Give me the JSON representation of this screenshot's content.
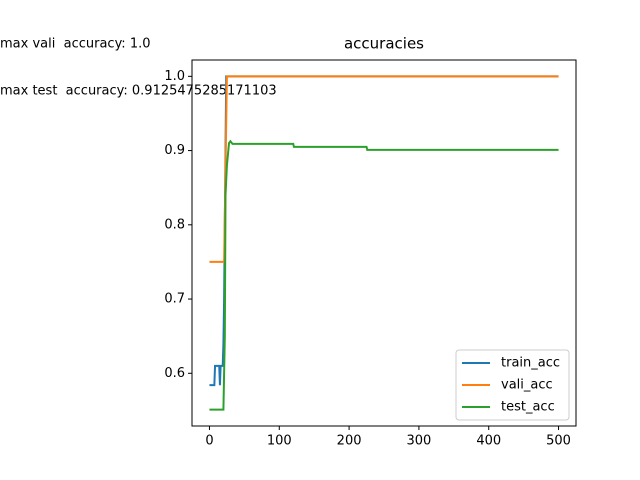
{
  "chart_data": {
    "type": "line",
    "title": "accuracies",
    "annotations": [
      "max vali  accuracy: 1.0",
      "max test  accuracy: 0.9125475285171103"
    ],
    "xlim": [
      -25,
      525
    ],
    "ylim": [
      0.529,
      1.022
    ],
    "xticks": [
      0,
      100,
      200,
      300,
      400,
      500
    ],
    "yticks": [
      0.6,
      0.7,
      0.8,
      0.9,
      {
        "value": 1,
        "label": "1.0"
      }
    ],
    "legend": "lower right",
    "series": [
      {
        "name": "train_acc",
        "color": "#1f77b4",
        "x": [
          0,
          7,
          8,
          14,
          15,
          16,
          19,
          20,
          21,
          22,
          23,
          24,
          500
        ],
        "values": [
          0.584,
          0.584,
          0.61,
          0.61,
          0.584,
          0.61,
          0.61,
          0.64,
          0.7,
          0.8,
          0.9,
          1,
          1
        ]
      },
      {
        "name": "vali_acc",
        "color": "#ff7f0e",
        "x": [
          0,
          21,
          25,
          500
        ],
        "values": [
          0.75,
          0.75,
          1,
          1
        ]
      },
      {
        "name": "test_acc",
        "color": "#2ca02c",
        "x": [
          0,
          20,
          22,
          23,
          25,
          28,
          30,
          33,
          120,
          121,
          225,
          226,
          500
        ],
        "values": [
          0.551,
          0.551,
          0.65,
          0.84,
          0.88,
          0.91,
          0.9125,
          0.909,
          0.909,
          0.905,
          0.905,
          0.901,
          0.901
        ]
      }
    ]
  }
}
